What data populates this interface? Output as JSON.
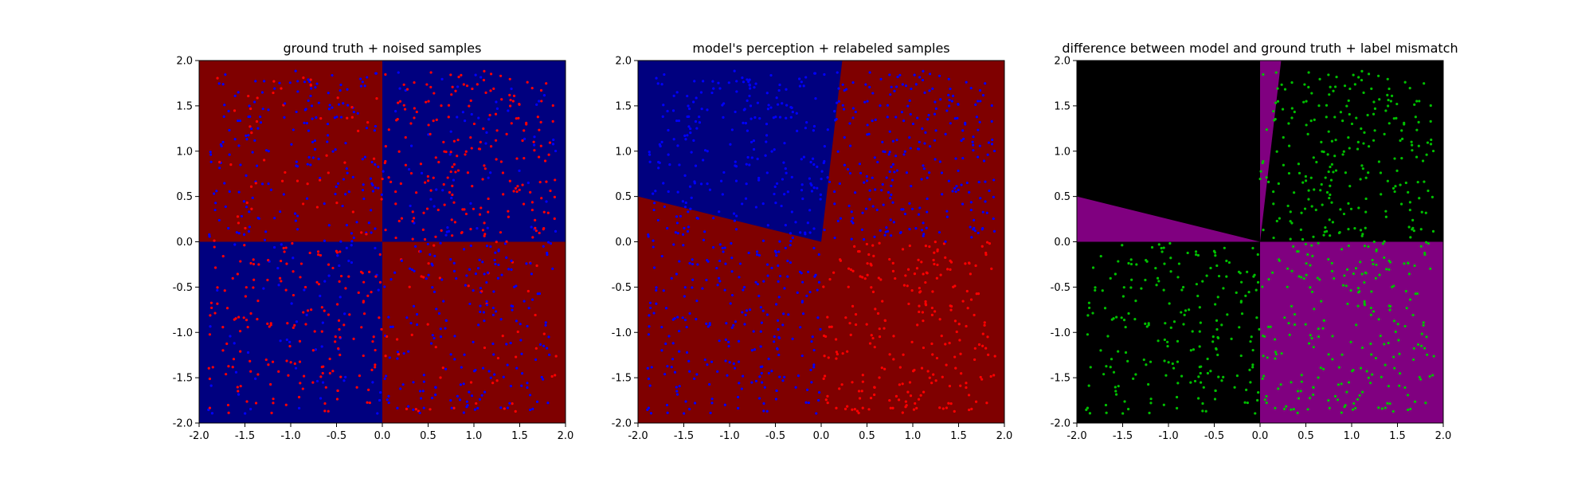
{
  "chart_data": [
    {
      "type": "scatter",
      "title": "ground truth + noised samples",
      "xlim": [
        -2.0,
        2.0
      ],
      "ylim": [
        -2.0,
        2.0
      ],
      "xticks": [
        "-2.0",
        "-1.5",
        "-1.0",
        "-0.5",
        "0.0",
        "0.5",
        "1.0",
        "1.5",
        "2.0"
      ],
      "yticks": [
        "-2.0",
        "-1.5",
        "-1.0",
        "-0.5",
        "0.0",
        "0.5",
        "1.0",
        "1.5",
        "2.0"
      ],
      "background": "xor quadrants: class A where x*y > 0 (blue), class B where x*y < 0 (red)",
      "region_colors": {
        "class_a": "#00007f",
        "class_b": "#7f0000"
      },
      "point_colors": {
        "class_a": "#0000ff",
        "class_b": "#ff0000"
      },
      "series": [
        {
          "color": "#ff0000",
          "description": "concentrated in quadrants x>0,y>0 and x<0,y<0",
          "approx_count": 480
        },
        {
          "color": "#0000ff",
          "description": "concentrated in quadrants x<0,y>0 and x>0,y<0",
          "approx_count": 520
        }
      ]
    },
    {
      "type": "scatter",
      "title": "model's perception + relabeled samples",
      "xlim": [
        -2.0,
        2.0
      ],
      "ylim": [
        -2.0,
        2.0
      ],
      "xticks": [
        "-2.0",
        "-1.5",
        "-1.0",
        "-0.5",
        "0.0",
        "0.5",
        "1.0",
        "1.5",
        "2.0"
      ],
      "yticks": [
        "-2.0",
        "-1.5",
        "-1.0",
        "-0.5",
        "0.0",
        "0.5",
        "1.0",
        "1.5",
        "2.0"
      ],
      "background": "blue wedge in upper-left bounded by ray from origin to (-2, 0.5) and ray from origin to (0.23, 2.0); red elsewhere",
      "boundary_rays": [
        [
          -2.0,
          0.5
        ],
        [
          0.23,
          2.0
        ]
      ],
      "region_colors": {
        "class_a": "#00007f",
        "class_b": "#7f0000"
      },
      "series": [
        {
          "color": "#ff0000",
          "description": "points with x>0, y<0 (lower-right quadrant)",
          "approx_count": 260
        },
        {
          "color": "#0000ff",
          "description": "all other points",
          "approx_count": 740
        }
      ]
    },
    {
      "type": "scatter",
      "title": "difference between model and ground truth + label mismatch",
      "xlim": [
        -2.0,
        2.0
      ],
      "ylim": [
        -2.0,
        2.0
      ],
      "xticks": [
        "-2.0",
        "-1.5",
        "-1.0",
        "-0.5",
        "0.0",
        "0.5",
        "1.0",
        "1.5",
        "2.0"
      ],
      "yticks": [
        "-2.0",
        "-1.5",
        "-1.0",
        "-0.5",
        "0.0",
        "0.5",
        "1.0",
        "1.5",
        "2.0"
      ],
      "background": "purple where model differs from ground truth (lower-right quadrant, thin wedge between x=0 and ray to (0.23,2.0), wedge between negative x-axis and ray to (-2,0.5)); black elsewhere",
      "region_colors": {
        "agree": "#000000",
        "disagree": "#800080"
      },
      "series": [
        {
          "color": "#00c000",
          "description": "label mismatch points, in x>0,y>0 / x<0,y<0 / x>0,y<0 regions",
          "approx_count": 700
        }
      ]
    }
  ]
}
